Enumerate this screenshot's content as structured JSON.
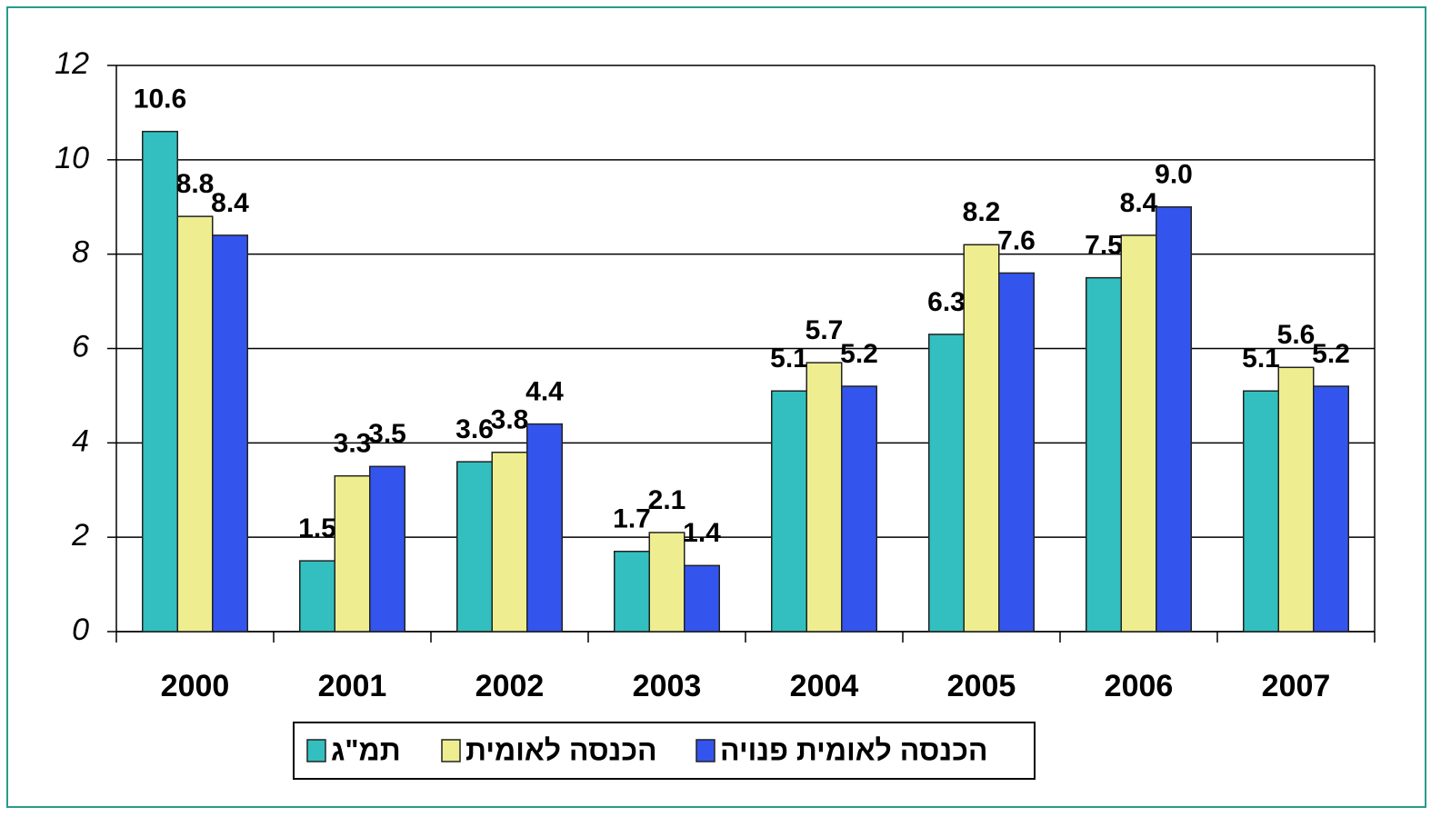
{
  "chart_data": {
    "type": "bar",
    "categories": [
      "2000",
      "2001",
      "2002",
      "2003",
      "2004",
      "2005",
      "2006",
      "2007"
    ],
    "series": [
      {
        "name": "תמ\"ג",
        "color": "#33bfbf",
        "values": [
          10.6,
          1.5,
          3.6,
          1.7,
          5.1,
          6.3,
          7.5,
          5.1
        ],
        "value_labels": [
          "10.6",
          "1.5",
          "3.6",
          "1.7",
          "5.1",
          "6.3",
          "7.5",
          "5.1"
        ]
      },
      {
        "name": "הכנסה לאומית",
        "color": "#eeee90",
        "values": [
          8.8,
          3.3,
          3.8,
          2.1,
          5.7,
          8.2,
          8.4,
          5.6
        ],
        "value_labels": [
          "8.8",
          "3.3",
          "3.8",
          "2.1",
          "5.7",
          "8.2",
          "8.4",
          "5.6"
        ]
      },
      {
        "name": "הכנסה לאומית פנויה",
        "color": "#3355ee",
        "values": [
          8.4,
          3.5,
          4.4,
          1.4,
          5.2,
          7.6,
          9.0,
          5.2
        ],
        "value_labels": [
          "8.4",
          "3.5",
          "4.4",
          "1.4",
          "5.2",
          "7.6",
          "9.0",
          "5.2"
        ]
      }
    ],
    "ylim": [
      0,
      12
    ],
    "yticks": [
      0,
      2,
      4,
      6,
      8,
      10,
      12
    ],
    "grid": true
  }
}
